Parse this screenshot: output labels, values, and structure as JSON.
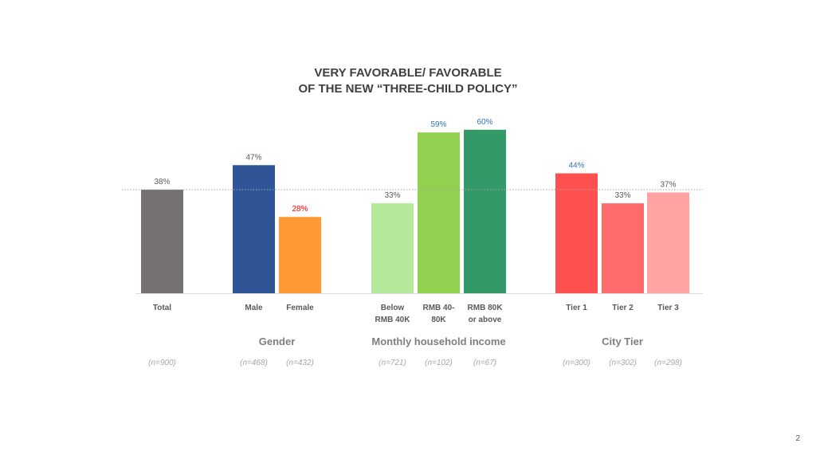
{
  "chart_data": {
    "type": "bar",
    "title_lines": [
      "VERY FAVORABLE/ FAVORABLE",
      "OF THE NEW “THREE-CHILD POLICY”"
    ],
    "categories": [
      {
        "label": [
          "Total"
        ],
        "value": 38,
        "n": "(n=900)",
        "color": "#767171",
        "label_color": "#595959"
      },
      {
        "label": [
          "Male"
        ],
        "value": 47,
        "n": "(n=468)",
        "color": "#2f5597",
        "label_color": "#595959"
      },
      {
        "label": [
          "Female"
        ],
        "value": 28,
        "n": "(n=432)",
        "color": "#ff9933",
        "label_color": "#ff0000"
      },
      {
        "label": [
          "Below",
          "RMB 40K"
        ],
        "value": 33,
        "n": "(n=721)",
        "color": "#b4e89a",
        "label_color": "#595959"
      },
      {
        "label": [
          "RMB 40-",
          "80K"
        ],
        "value": 59,
        "n": "(n=102)",
        "color": "#92d050",
        "label_color": "#2e75b6"
      },
      {
        "label": [
          "RMB 80K",
          "or above"
        ],
        "value": 60,
        "n": "(n=67)",
        "color": "#339966",
        "label_color": "#2e75b6"
      },
      {
        "label": [
          "Tier 1"
        ],
        "value": 44,
        "n": "(n=300)",
        "color": "#ff5050",
        "label_color": "#2e75b6"
      },
      {
        "label": [
          "Tier 2"
        ],
        "value": 33,
        "n": "(n=302)",
        "color": "#ff6b6b",
        "label_color": "#595959"
      },
      {
        "label": [
          "Tier 3"
        ],
        "value": 37,
        "n": "(n=298)",
        "color": "#ffa3a3",
        "label_color": "#595959"
      }
    ],
    "groups": [
      {
        "name": "Gender",
        "members": [
          1,
          2
        ]
      },
      {
        "name": "Monthly household income",
        "members": [
          3,
          4,
          5
        ]
      },
      {
        "name": "City Tier",
        "members": [
          6,
          7,
          8
        ]
      }
    ],
    "reference_line": {
      "value": 38,
      "style": "dotted"
    },
    "value_format": "percent",
    "ylim": [
      0,
      60
    ],
    "grid": false,
    "legend": "none"
  },
  "page_number": "2"
}
